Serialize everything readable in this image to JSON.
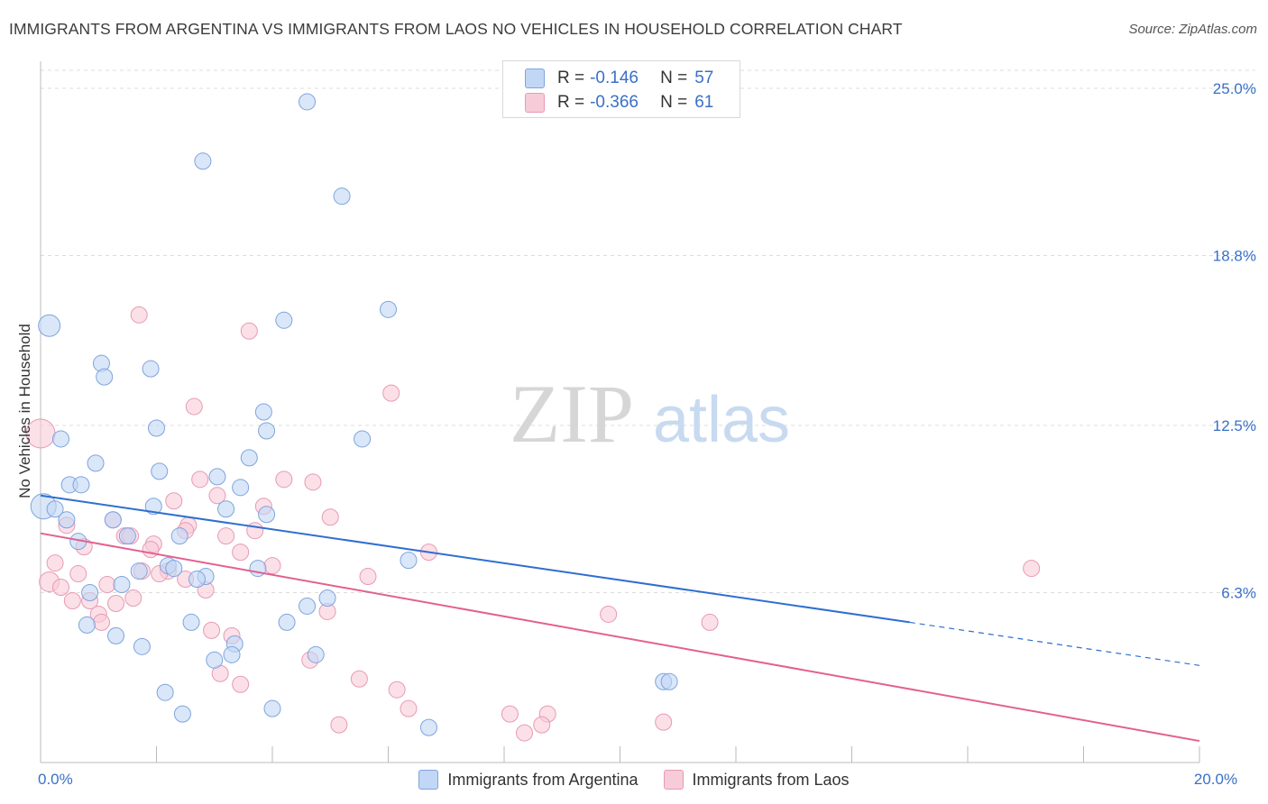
{
  "header": {
    "title": "IMMIGRANTS FROM ARGENTINA VS IMMIGRANTS FROM LAOS NO VEHICLES IN HOUSEHOLD CORRELATION CHART",
    "source": "Source: ZipAtlas.com"
  },
  "watermark": {
    "zip": "ZIP",
    "atlas": "atlas"
  },
  "legend_top": {
    "argentina": {
      "r_label": "R =",
      "r_value": "-0.146",
      "n_label": "N =",
      "n_value": "57"
    },
    "laos": {
      "r_label": "R =",
      "r_value": "-0.366",
      "n_label": "N =",
      "n_value": "61"
    }
  },
  "legend_bottom": {
    "argentina": "Immigrants from Argentina",
    "laos": "Immigrants from Laos"
  },
  "colors": {
    "argentina_fill": "#c2d7f5",
    "argentina_stroke": "#7ea4dd",
    "argentina_line": "#2f6fd0",
    "laos_fill": "#f8cbd9",
    "laos_stroke": "#e79ab4",
    "laos_line": "#e3618f",
    "tick_label": "#3a70c7"
  },
  "chart_data": {
    "type": "scatter",
    "title": "IMMIGRANTS FROM ARGENTINA VS IMMIGRANTS FROM LAOS NO VEHICLES IN HOUSEHOLD CORRELATION CHART",
    "xlabel": "",
    "ylabel": "No Vehicles in Household",
    "xlim": [
      0,
      20
    ],
    "ylim": [
      0,
      25.0
    ],
    "x_ticks": [
      {
        "value": 0,
        "label": "0.0%"
      },
      {
        "value": 20,
        "label": "20.0%"
      }
    ],
    "y_ticks": [
      {
        "value": 6.3,
        "label": "6.3%"
      },
      {
        "value": 12.5,
        "label": "12.5%"
      },
      {
        "value": 18.8,
        "label": "18.8%"
      },
      {
        "value": 25.0,
        "label": "25.0%"
      }
    ],
    "grid": true,
    "legend_placement": "top-center",
    "series": [
      {
        "name": "Immigrants from Argentina",
        "trend": {
          "x0": 0,
          "y0": 9.9,
          "x1": 15.0,
          "y1": 5.2,
          "dashed_to_x": 20.0,
          "dashed_to_y": 3.6
        },
        "points": [
          [
            4.6,
            24.5,
            9
          ],
          [
            2.8,
            22.3,
            9
          ],
          [
            5.2,
            21.0,
            9
          ],
          [
            6.0,
            16.8,
            9
          ],
          [
            4.2,
            16.4,
            9
          ],
          [
            0.15,
            16.2,
            12
          ],
          [
            1.05,
            14.8,
            9
          ],
          [
            1.9,
            14.6,
            9
          ],
          [
            1.1,
            14.3,
            9
          ],
          [
            3.85,
            13.0,
            9
          ],
          [
            2.0,
            12.4,
            9
          ],
          [
            3.9,
            12.3,
            9
          ],
          [
            5.55,
            12.0,
            9
          ],
          [
            0.35,
            12.0,
            9
          ],
          [
            3.6,
            11.3,
            9
          ],
          [
            0.95,
            11.1,
            9
          ],
          [
            2.05,
            10.8,
            9
          ],
          [
            3.05,
            10.6,
            9
          ],
          [
            0.5,
            10.3,
            9
          ],
          [
            0.7,
            10.3,
            9
          ],
          [
            3.45,
            10.2,
            9
          ],
          [
            0.05,
            9.5,
            14
          ],
          [
            0.25,
            9.4,
            9
          ],
          [
            1.95,
            9.5,
            9
          ],
          [
            3.2,
            9.4,
            9
          ],
          [
            3.9,
            9.2,
            9
          ],
          [
            0.45,
            9.0,
            9
          ],
          [
            1.25,
            9.0,
            9
          ],
          [
            1.5,
            8.4,
            9
          ],
          [
            2.4,
            8.4,
            9
          ],
          [
            0.65,
            8.2,
            9
          ],
          [
            6.35,
            7.5,
            9
          ],
          [
            2.2,
            7.3,
            9
          ],
          [
            2.3,
            7.2,
            9
          ],
          [
            3.75,
            7.2,
            9
          ],
          [
            1.7,
            7.1,
            9
          ],
          [
            2.85,
            6.9,
            9
          ],
          [
            2.7,
            6.8,
            9
          ],
          [
            1.4,
            6.6,
            9
          ],
          [
            0.85,
            6.3,
            9
          ],
          [
            4.95,
            6.1,
            9
          ],
          [
            4.6,
            5.8,
            9
          ],
          [
            4.25,
            5.2,
            9
          ],
          [
            0.8,
            5.1,
            9
          ],
          [
            2.6,
            5.2,
            9
          ],
          [
            1.3,
            4.7,
            9
          ],
          [
            3.35,
            4.4,
            9
          ],
          [
            1.75,
            4.3,
            9
          ],
          [
            4.75,
            4.0,
            9
          ],
          [
            3.3,
            4.0,
            9
          ],
          [
            3.0,
            3.8,
            9
          ],
          [
            10.75,
            3.0,
            9
          ],
          [
            10.85,
            3.0,
            9
          ],
          [
            2.15,
            2.6,
            9
          ],
          [
            4.0,
            2.0,
            9
          ],
          [
            2.45,
            1.8,
            9
          ],
          [
            6.7,
            1.3,
            9
          ]
        ]
      },
      {
        "name": "Immigrants from Laos",
        "trend": {
          "x0": 0,
          "y0": 8.5,
          "x1": 20.0,
          "y1": 0.8
        },
        "points": [
          [
            1.7,
            16.6,
            9
          ],
          [
            3.6,
            16.0,
            9
          ],
          [
            6.05,
            13.7,
            9
          ],
          [
            2.65,
            13.2,
            9
          ],
          [
            0.0,
            12.2,
            16
          ],
          [
            4.2,
            10.5,
            9
          ],
          [
            4.7,
            10.4,
            9
          ],
          [
            2.75,
            10.5,
            9
          ],
          [
            3.05,
            9.9,
            9
          ],
          [
            2.3,
            9.7,
            9
          ],
          [
            3.85,
            9.5,
            9
          ],
          [
            5.0,
            9.1,
            9
          ],
          [
            1.25,
            9.0,
            9
          ],
          [
            0.45,
            8.8,
            9
          ],
          [
            2.55,
            8.8,
            9
          ],
          [
            2.5,
            8.6,
            9
          ],
          [
            3.7,
            8.6,
            9
          ],
          [
            1.45,
            8.4,
            9
          ],
          [
            1.55,
            8.4,
            9
          ],
          [
            3.2,
            8.4,
            9
          ],
          [
            1.95,
            8.1,
            9
          ],
          [
            0.75,
            8.0,
            9
          ],
          [
            1.9,
            7.9,
            9
          ],
          [
            3.45,
            7.8,
            9
          ],
          [
            6.7,
            7.8,
            9
          ],
          [
            0.25,
            7.4,
            9
          ],
          [
            4.0,
            7.3,
            9
          ],
          [
            17.1,
            7.2,
            9
          ],
          [
            1.75,
            7.1,
            9
          ],
          [
            2.2,
            7.1,
            9
          ],
          [
            0.65,
            7.0,
            9
          ],
          [
            2.05,
            7.0,
            9
          ],
          [
            5.65,
            6.9,
            9
          ],
          [
            2.5,
            6.8,
            9
          ],
          [
            0.15,
            6.7,
            11
          ],
          [
            1.15,
            6.6,
            9
          ],
          [
            0.35,
            6.5,
            9
          ],
          [
            2.85,
            6.4,
            9
          ],
          [
            1.6,
            6.1,
            9
          ],
          [
            0.55,
            6.0,
            9
          ],
          [
            0.85,
            6.0,
            9
          ],
          [
            1.3,
            5.9,
            9
          ],
          [
            4.95,
            5.6,
            9
          ],
          [
            1.0,
            5.5,
            9
          ],
          [
            9.8,
            5.5,
            9
          ],
          [
            1.05,
            5.2,
            9
          ],
          [
            11.55,
            5.2,
            9
          ],
          [
            2.95,
            4.9,
            9
          ],
          [
            3.3,
            4.7,
            9
          ],
          [
            4.65,
            3.8,
            9
          ],
          [
            3.1,
            3.3,
            9
          ],
          [
            5.5,
            3.1,
            9
          ],
          [
            3.45,
            2.9,
            9
          ],
          [
            6.15,
            2.7,
            9
          ],
          [
            6.35,
            2.0,
            9
          ],
          [
            8.1,
            1.8,
            9
          ],
          [
            8.75,
            1.8,
            9
          ],
          [
            8.65,
            1.4,
            9
          ],
          [
            10.75,
            1.5,
            9
          ],
          [
            5.15,
            1.4,
            9
          ],
          [
            8.35,
            1.1,
            9
          ]
        ]
      }
    ]
  }
}
